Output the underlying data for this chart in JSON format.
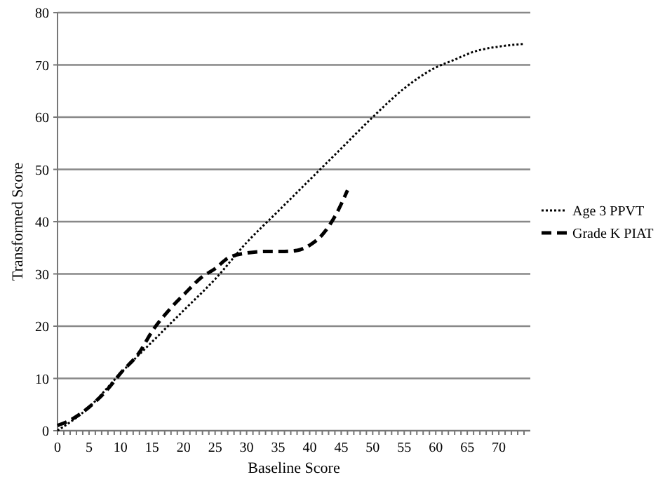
{
  "chart_data": {
    "type": "line",
    "xlabel": "Baseline Score",
    "ylabel": "Transformed Score",
    "xlim": [
      0,
      75
    ],
    "ylim": [
      0,
      80
    ],
    "xticks": [
      0,
      {
        "value": 1,
        "label": null
      },
      {
        "value": 2,
        "label": null
      },
      {
        "value": 3,
        "label": null
      },
      {
        "value": 4,
        "label": null
      },
      5,
      {
        "value": 6,
        "label": null
      },
      {
        "value": 7,
        "label": null
      },
      {
        "value": 8,
        "label": null
      },
      {
        "value": 9,
        "label": null
      },
      10,
      {
        "value": 11,
        "label": null
      },
      {
        "value": 12,
        "label": null
      },
      {
        "value": 13,
        "label": null
      },
      {
        "value": 14,
        "label": null
      },
      15,
      {
        "value": 16,
        "label": null
      },
      {
        "value": 17,
        "label": null
      },
      {
        "value": 18,
        "label": null
      },
      {
        "value": 19,
        "label": null
      },
      20,
      {
        "value": 21,
        "label": null
      },
      {
        "value": 22,
        "label": null
      },
      {
        "value": 23,
        "label": null
      },
      {
        "value": 24,
        "label": null
      },
      25,
      {
        "value": 26,
        "label": null
      },
      {
        "value": 27,
        "label": null
      },
      {
        "value": 28,
        "label": null
      },
      {
        "value": 29,
        "label": null
      },
      30,
      {
        "value": 31,
        "label": null
      },
      {
        "value": 32,
        "label": null
      },
      {
        "value": 33,
        "label": null
      },
      {
        "value": 34,
        "label": null
      },
      35,
      {
        "value": 36,
        "label": null
      },
      {
        "value": 37,
        "label": null
      },
      {
        "value": 38,
        "label": null
      },
      {
        "value": 39,
        "label": null
      },
      40,
      {
        "value": 41,
        "label": null
      },
      {
        "value": 42,
        "label": null
      },
      {
        "value": 43,
        "label": null
      },
      {
        "value": 44,
        "label": null
      },
      45,
      {
        "value": 46,
        "label": null
      },
      {
        "value": 47,
        "label": null
      },
      {
        "value": 48,
        "label": null
      },
      {
        "value": 49,
        "label": null
      },
      50,
      {
        "value": 51,
        "label": null
      },
      {
        "value": 52,
        "label": null
      },
      {
        "value": 53,
        "label": null
      },
      {
        "value": 54,
        "label": null
      },
      55,
      {
        "value": 56,
        "label": null
      },
      {
        "value": 57,
        "label": null
      },
      {
        "value": 58,
        "label": null
      },
      {
        "value": 59,
        "label": null
      },
      60,
      {
        "value": 61,
        "label": null
      },
      {
        "value": 62,
        "label": null
      },
      {
        "value": 63,
        "label": null
      },
      {
        "value": 64,
        "label": null
      },
      65,
      {
        "value": 66,
        "label": null
      },
      {
        "value": 67,
        "label": null
      },
      {
        "value": 68,
        "label": null
      },
      {
        "value": 69,
        "label": null
      },
      70,
      {
        "value": 71,
        "label": null
      },
      {
        "value": 72,
        "label": null
      },
      {
        "value": 73,
        "label": null
      },
      {
        "value": 74,
        "label": null
      }
    ],
    "yticks": [
      0,
      10,
      20,
      30,
      40,
      50,
      60,
      70,
      80
    ],
    "grid": "y",
    "legend": "right",
    "marker": "none",
    "series": [
      {
        "name": "Age 3 PPVT",
        "color": "#000000",
        "line_style": "dotted",
        "x": [
          0,
          5,
          10,
          15,
          20,
          25,
          30,
          35,
          40,
          45,
          50,
          55,
          60,
          63,
          66,
          70,
          74
        ],
        "values": [
          0,
          4.5,
          11,
          17,
          23,
          29,
          36,
          42,
          48,
          54,
          60,
          65.5,
          69.5,
          71,
          72.5,
          73.5,
          74
        ]
      },
      {
        "name": "Grade K PIAT",
        "color": "#000000",
        "line_style": "dashed",
        "x": [
          0,
          2,
          5,
          8,
          10,
          13,
          15,
          18,
          20,
          23,
          25,
          27,
          30,
          33,
          36,
          38,
          40,
          42,
          44,
          46
        ],
        "values": [
          1,
          2,
          4.5,
          8,
          11,
          15,
          19,
          23.5,
          26,
          29.5,
          31,
          33,
          34,
          34.3,
          34.3,
          34.5,
          35.5,
          37.5,
          41,
          46
        ]
      }
    ]
  }
}
